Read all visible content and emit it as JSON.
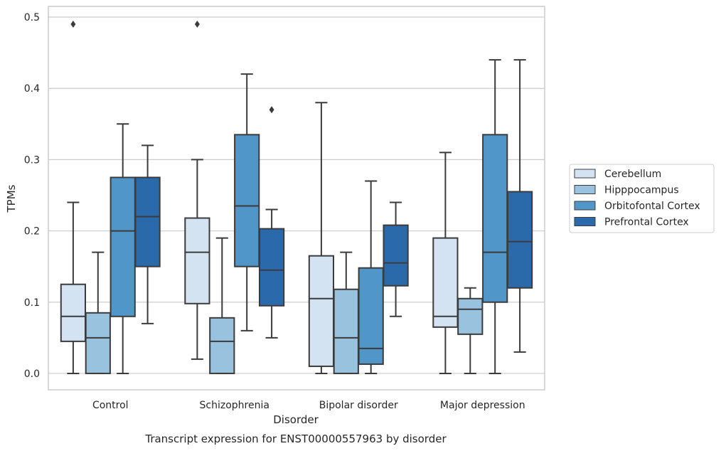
{
  "chart_data": {
    "type": "box",
    "caption": "Transcript expression for ENST00000557963 by disorder",
    "xlabel": "Disorder",
    "ylabel": "TPMs",
    "ylim": [
      -0.023,
      0.515
    ],
    "yticks": [
      0.0,
      0.1,
      0.2,
      0.3,
      0.4,
      0.5
    ],
    "ytick_labels": [
      "0.0",
      "0.1",
      "0.2",
      "0.3",
      "0.4",
      "0.5"
    ],
    "grid": "horizontal",
    "legend_position": "right",
    "categories": [
      "Control",
      "Schizophrenia",
      "Bipolar disorder",
      "Major depression"
    ],
    "series": [
      {
        "name": "Cerebellum",
        "color": "#d3e3f2",
        "boxes": [
          {
            "whislo": 0.0,
            "q1": 0.045,
            "med": 0.08,
            "q3": 0.125,
            "whishi": 0.24,
            "fliers": [
              0.49
            ]
          },
          {
            "whislo": 0.02,
            "q1": 0.098,
            "med": 0.17,
            "q3": 0.218,
            "whishi": 0.3,
            "fliers": [
              0.49
            ]
          },
          {
            "whislo": 0.0,
            "q1": 0.01,
            "med": 0.105,
            "q3": 0.165,
            "whishi": 0.38,
            "fliers": []
          },
          {
            "whislo": 0.0,
            "q1": 0.065,
            "med": 0.08,
            "q3": 0.19,
            "whishi": 0.31,
            "fliers": []
          }
        ]
      },
      {
        "name": "Hipppocampus",
        "color": "#98c2de",
        "boxes": [
          {
            "whislo": 0.0,
            "q1": 0.0,
            "med": 0.05,
            "q3": 0.085,
            "whishi": 0.17,
            "fliers": []
          },
          {
            "whislo": 0.0,
            "q1": 0.0,
            "med": 0.045,
            "q3": 0.078,
            "whishi": 0.19,
            "fliers": []
          },
          {
            "whislo": 0.0,
            "q1": 0.0,
            "med": 0.05,
            "q3": 0.118,
            "whishi": 0.17,
            "fliers": []
          },
          {
            "whislo": 0.0,
            "q1": 0.055,
            "med": 0.09,
            "q3": 0.105,
            "whishi": 0.12,
            "fliers": []
          }
        ]
      },
      {
        "name": "Orbitofontal Cortex",
        "color": "#5096c9",
        "boxes": [
          {
            "whislo": 0.0,
            "q1": 0.08,
            "med": 0.2,
            "q3": 0.275,
            "whishi": 0.35,
            "fliers": []
          },
          {
            "whislo": 0.06,
            "q1": 0.15,
            "med": 0.235,
            "q3": 0.335,
            "whishi": 0.42,
            "fliers": []
          },
          {
            "whislo": 0.0,
            "q1": 0.013,
            "med": 0.035,
            "q3": 0.148,
            "whishi": 0.27,
            "fliers": []
          },
          {
            "whislo": 0.0,
            "q1": 0.1,
            "med": 0.17,
            "q3": 0.335,
            "whishi": 0.44,
            "fliers": []
          }
        ]
      },
      {
        "name": "Prefrontal Cortex",
        "color": "#2a6aaa",
        "boxes": [
          {
            "whislo": 0.07,
            "q1": 0.15,
            "med": 0.22,
            "q3": 0.275,
            "whishi": 0.32,
            "fliers": []
          },
          {
            "whislo": 0.05,
            "q1": 0.095,
            "med": 0.145,
            "q3": 0.203,
            "whishi": 0.23,
            "fliers": [
              0.37
            ]
          },
          {
            "whislo": 0.08,
            "q1": 0.123,
            "med": 0.155,
            "q3": 0.208,
            "whishi": 0.24,
            "fliers": []
          },
          {
            "whislo": 0.03,
            "q1": 0.12,
            "med": 0.185,
            "q3": 0.255,
            "whishi": 0.44,
            "fliers": []
          }
        ]
      }
    ]
  }
}
